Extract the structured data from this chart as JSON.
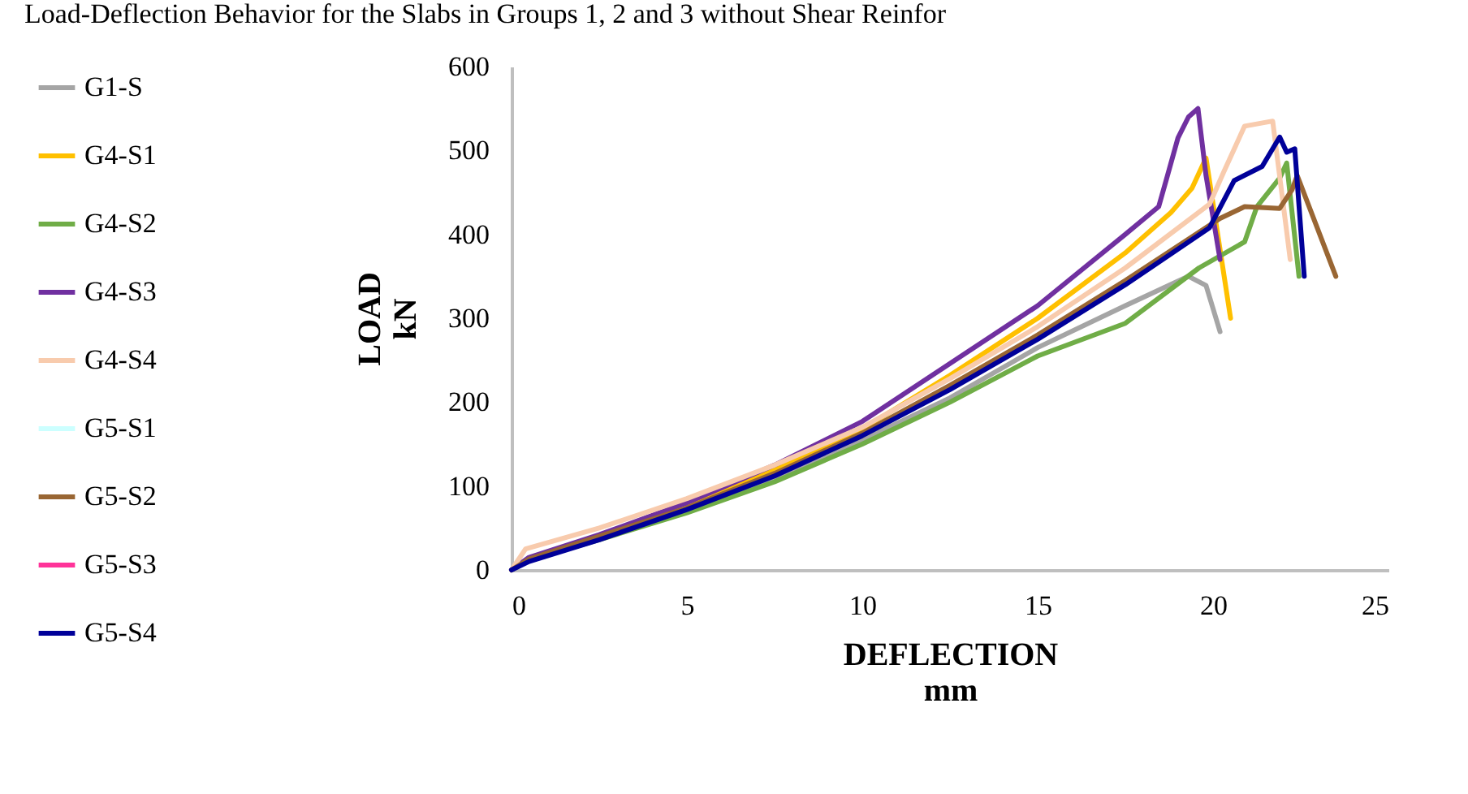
{
  "chart_data": {
    "type": "line",
    "title": "Load-Deflection Behavior for the Slabs in Groups 1, 2 and 3 without Shear Reinfor",
    "xlabel": "DEFLECTION\nmm",
    "ylabel": "LOAD\nkN",
    "xlim": [
      0,
      25
    ],
    "xticks": [
      0,
      5,
      10,
      15,
      20,
      25
    ],
    "ylim": [
      0,
      600
    ],
    "yticks": [
      0,
      100,
      200,
      300,
      400,
      500,
      600
    ],
    "grid": false,
    "legend": "left",
    "line_style": "solid",
    "marker": "none",
    "series": [
      {
        "name": "G1-S",
        "color": "#a5a5a5",
        "x": [
          0,
          0.5,
          2.5,
          5,
          7.5,
          10,
          12.5,
          15,
          17.5,
          19.3,
          19.8,
          20.2
        ],
        "values": [
          0,
          12,
          38,
          70,
          108,
          155,
          205,
          265,
          315,
          350,
          339,
          284
        ]
      },
      {
        "name": "G4-S1",
        "color": "#ffc000",
        "x": [
          5,
          7.5,
          10,
          12.5,
          15,
          17.5,
          18.8,
          19.4,
          19.8,
          20.5
        ],
        "values": [
          78,
          120,
          168,
          232,
          300,
          378,
          426,
          455,
          491,
          300
        ]
      },
      {
        "name": "G4-S2",
        "color": "#70ad47",
        "x": [
          0,
          0.5,
          2.5,
          5,
          7.5,
          10,
          12.5,
          15,
          17.5,
          19.6,
          20.9,
          21.25,
          21.9,
          22.1,
          22.45
        ],
        "values": [
          0,
          12,
          36,
          68,
          105,
          150,
          200,
          255,
          294,
          360,
          391,
          433,
          467,
          485,
          350
        ]
      },
      {
        "name": "G4-S3",
        "color": "#7030a0",
        "x": [
          0,
          0.5,
          2.5,
          5,
          7.5,
          10,
          12.5,
          15,
          17.5,
          18.45,
          18.7,
          19.0,
          19.3,
          19.57,
          19.8,
          20.2
        ],
        "values": [
          0,
          15,
          42,
          80,
          125,
          177,
          246,
          315,
          400,
          433,
          470,
          515,
          540,
          550,
          470,
          370
        ]
      },
      {
        "name": "G4-S4",
        "color": "#f8cbad",
        "x": [
          0,
          0.4,
          2.5,
          5,
          7.5,
          10,
          12.5,
          15,
          17.5,
          19.9,
          20.3,
          20.9,
          21.7,
          22.2
        ],
        "values": [
          0,
          25,
          50,
          85,
          125,
          170,
          228,
          290,
          360,
          436,
          474,
          529,
          535,
          370
        ]
      },
      {
        "name": "G5-S1",
        "color": "#ccffff"
      },
      {
        "name": "G5-S2",
        "color": "#996633",
        "x": [
          0,
          0.5,
          2.5,
          5,
          7.5,
          10,
          12.5,
          15,
          17.5,
          20.2,
          20.9,
          21.9,
          22.25,
          22.4,
          23.5
        ],
        "values": [
          0,
          13,
          40,
          74,
          115,
          163,
          220,
          280,
          345,
          419,
          433,
          431,
          453,
          470,
          350
        ]
      },
      {
        "name": "G5-S3",
        "color": "#ff3399"
      },
      {
        "name": "G5-S4",
        "color": "#000099",
        "x": [
          0,
          0.5,
          2.5,
          5,
          7.5,
          10,
          12.5,
          15,
          17.5,
          19.9,
          20.6,
          21.4,
          21.9,
          22.1,
          22.33,
          22.6
        ],
        "values": [
          0,
          10,
          36,
          72,
          112,
          160,
          215,
          275,
          340,
          408,
          464,
          481,
          516,
          498,
          502,
          350
        ]
      }
    ]
  }
}
